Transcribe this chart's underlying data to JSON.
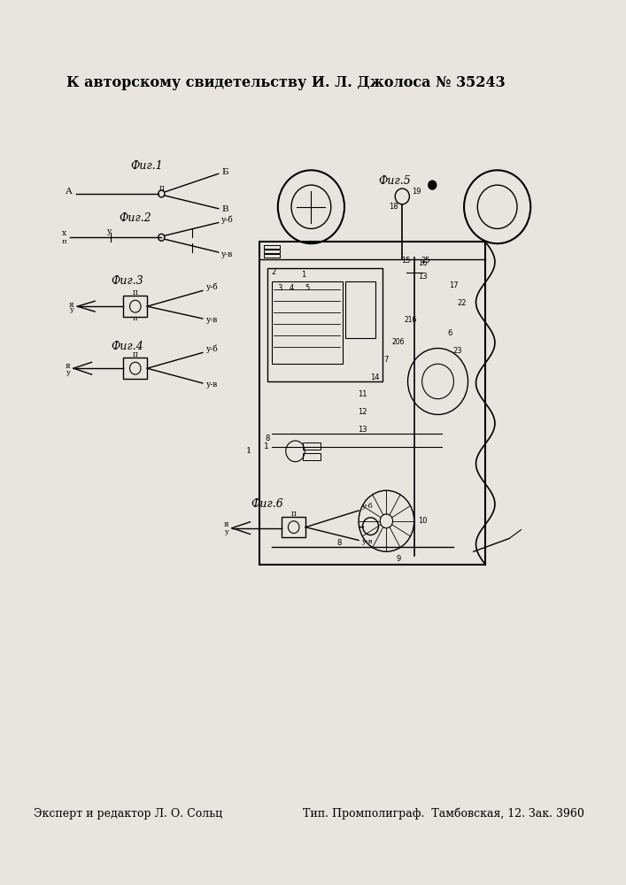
{
  "title": "К авторскому свидетельству И. Л. Джолоса № 35243",
  "footer_left": "Эксперт и редактор Л. О. Сольц",
  "footer_right": "Тип. Промполиграф.  Тамбовская, 12. Зак. 3960",
  "bg_color": "#e8e5df"
}
